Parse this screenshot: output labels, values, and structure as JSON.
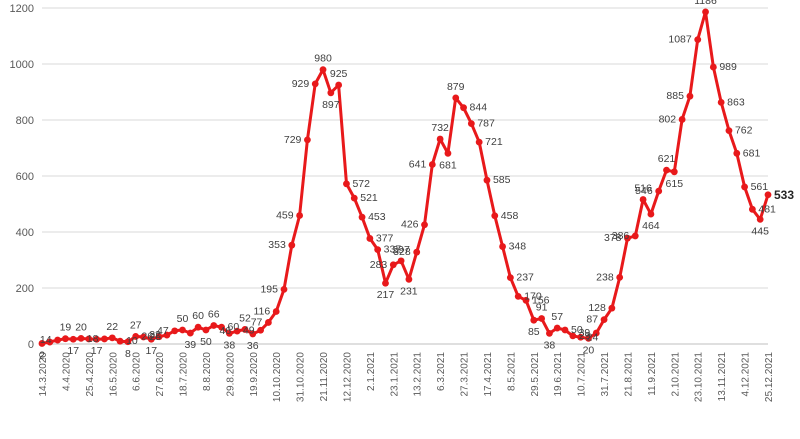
{
  "chart_data": {
    "type": "line",
    "title": "",
    "xlabel": "",
    "ylabel": "",
    "ylim": [
      0,
      1200
    ],
    "y_ticks": [
      "0",
      "200",
      "400",
      "600",
      "800",
      "1000",
      "1200"
    ],
    "grid": true,
    "legend": "none",
    "series_color": "#e8191b",
    "x_tick_labels": [
      "14.3.2020",
      "4.4.2020",
      "25.4.2020",
      "16.5.2020",
      "6.6.2020",
      "27.6.2020",
      "18.7.2020",
      "8.8.2020",
      "29.8.2020",
      "19.9.2020",
      "10.10.2020",
      "31.10.2020",
      "21.11.2020",
      "12.12.2020",
      "2.1.2021",
      "23.1.2021",
      "13.2.2021",
      "6.3.2021",
      "27.3.2021",
      "17.4.2021",
      "8.5.2021",
      "29.5.2021",
      "19.6.2021",
      "10.7.2021",
      "31.7.2021",
      "21.8.2021",
      "11.9.2021",
      "2.10.2021",
      "23.10.2021",
      "13.11.2021",
      "4.12.2021",
      "25.12.2021"
    ],
    "series": [
      {
        "values": [
          2,
          7,
          14,
          19,
          17,
          20,
          18,
          17,
          18,
          22,
          10,
          8,
          27,
          25,
          17,
          26,
          32,
          47,
          50,
          39,
          60,
          50,
          66,
          60,
          38,
          46,
          52,
          36,
          49,
          77,
          116,
          195,
          353,
          459,
          729,
          929,
          980,
          897,
          925,
          572,
          521,
          453,
          377,
          337,
          217,
          283,
          297,
          231,
          328,
          426,
          641,
          732,
          681,
          879,
          844,
          787,
          721,
          585,
          458,
          348,
          237,
          170,
          156,
          85,
          91,
          38,
          57,
          50,
          29,
          24,
          20,
          39,
          87,
          128,
          238,
          378,
          386,
          516,
          464,
          546,
          621,
          615,
          802,
          885,
          1087,
          1186,
          989,
          863,
          762,
          681,
          561,
          481,
          445,
          533
        ],
        "labels": [
          "2",
          "",
          "14",
          "19",
          "17",
          "20",
          "",
          "17",
          "18",
          "22",
          "10",
          "8",
          "27",
          "25",
          "17",
          "26",
          "32",
          "47",
          "50",
          "39",
          "60",
          "50",
          "66",
          "60",
          "38",
          "46",
          "52",
          "36",
          "49",
          "77",
          "116",
          "195",
          "353",
          "459",
          "729",
          "929",
          "980",
          "897",
          "925",
          "572",
          "521",
          "453",
          "377",
          "337",
          "217",
          "283",
          "297",
          "231",
          "328",
          "426",
          "641",
          "732",
          "681",
          "879",
          "844",
          "787",
          "721",
          "585",
          "458",
          "348",
          "237",
          "170",
          "156",
          "85",
          "91",
          "38",
          "57",
          "50",
          "29",
          "24",
          "20",
          "39",
          "87",
          "128",
          "238",
          "378",
          "386",
          "516",
          "464",
          "546",
          "621",
          "615",
          "802",
          "885",
          "1087",
          "1186",
          "989",
          "863",
          "762",
          "681",
          "561",
          "481",
          "445",
          "533"
        ]
      }
    ]
  }
}
